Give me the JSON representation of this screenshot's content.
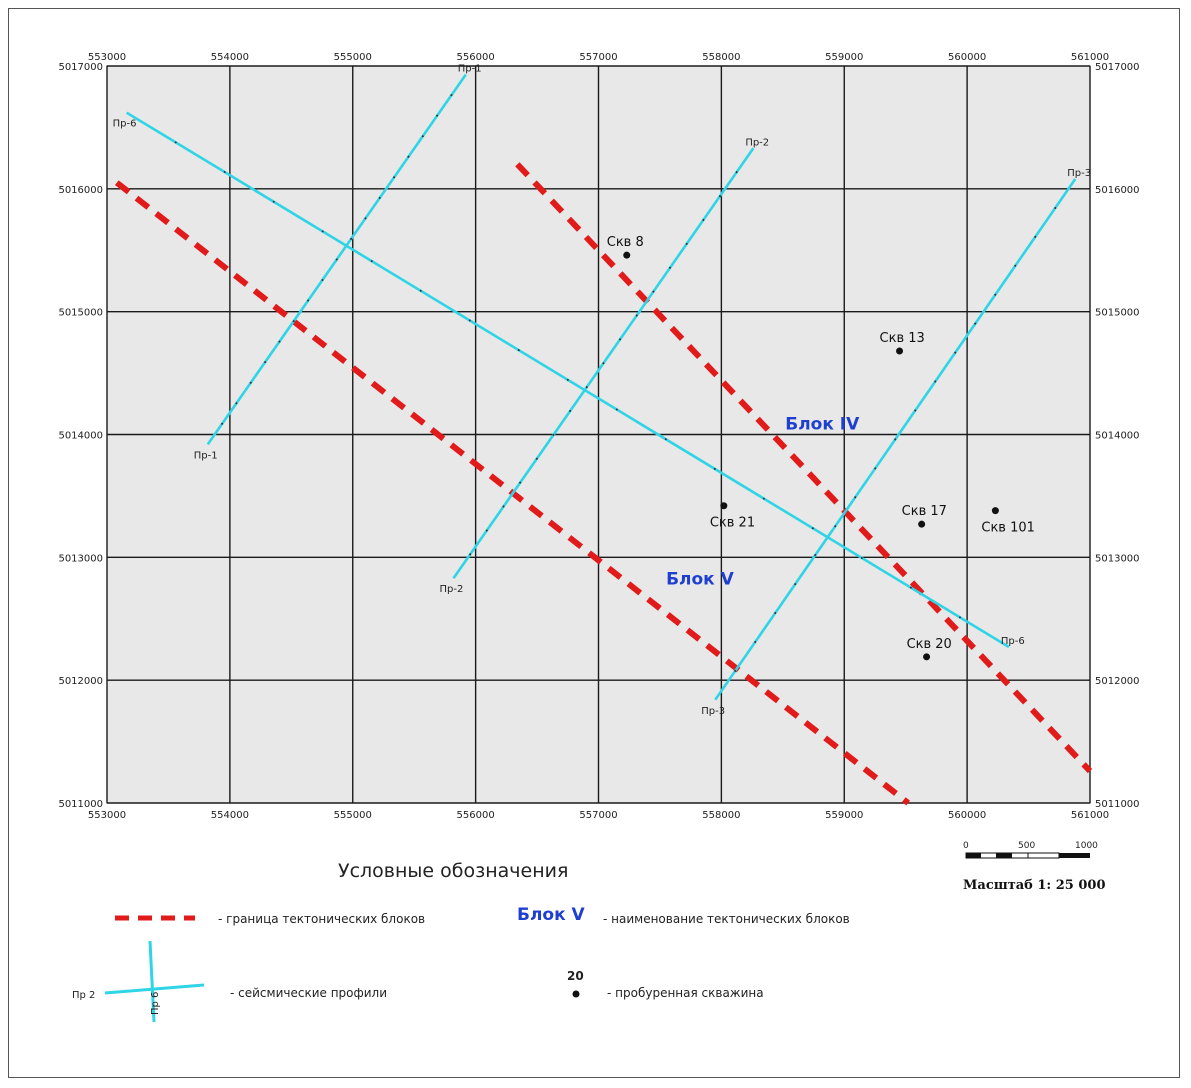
{
  "map": {
    "x_range": [
      553000,
      561000
    ],
    "y_range": [
      5011000,
      5017000
    ],
    "x_ticks": [
      "553000",
      "554000",
      "555000",
      "556000",
      "557000",
      "558000",
      "559000",
      "560000",
      "561000"
    ],
    "y_ticks": [
      "5011000",
      "5012000",
      "5013000",
      "5014000",
      "5015000",
      "5016000",
      "5017000"
    ],
    "colors": {
      "background": "#e8e8e8",
      "grid": "#1a1a1a",
      "profile": "#2fd4e6",
      "boundary": "#e11a1a",
      "block": "#1f3fd0"
    },
    "profiles": [
      {
        "name": "Пр-1",
        "start": [
          553820,
          5013920
        ],
        "end": [
          555920,
          5016930
        ],
        "start_label": "Пр-1",
        "end_label": "Пр-1"
      },
      {
        "name": "Пр-2",
        "start": [
          555820,
          5012830
        ],
        "end": [
          558260,
          5016330
        ],
        "start_label": "Пр-2",
        "end_label": "Пр-2"
      },
      {
        "name": "Пр-3",
        "start": [
          557950,
          5011840
        ],
        "end": [
          560880,
          5016080
        ],
        "start_label": "Пр-3",
        "end_label": "Пр-3"
      },
      {
        "name": "Пр-6",
        "start": [
          553160,
          5016620
        ],
        "end": [
          560340,
          5012270
        ],
        "start_label": "Пр-6",
        "end_label": "Пр-6"
      }
    ],
    "boundaries": [
      {
        "name": "boundary-southwest",
        "start": [
          553080,
          5016050
        ],
        "end": [
          559520,
          5011000
        ]
      },
      {
        "name": "boundary-northeast",
        "start": [
          556340,
          5016200
        ],
        "end": [
          561000,
          5011260
        ]
      }
    ],
    "wells": [
      {
        "label": "Скв 8",
        "x": 557230,
        "y": 5015460
      },
      {
        "label": "Скв 13",
        "x": 559450,
        "y": 5014680
      },
      {
        "label": "Скв 21",
        "x": 558020,
        "y": 5013420
      },
      {
        "label": "Скв 17",
        "x": 559630,
        "y": 5013270
      },
      {
        "label": "Скв 101",
        "x": 560230,
        "y": 5013380
      },
      {
        "label": "Скв 20",
        "x": 559670,
        "y": 5012190
      }
    ],
    "blocks": [
      {
        "label": "Блок IV",
        "x": 558520,
        "y": 5014040
      },
      {
        "label": "Блок V",
        "x": 557550,
        "y": 5012780
      }
    ]
  },
  "scale": {
    "title": "Масштаб 1: 25 000",
    "ticks": [
      "0",
      "500",
      "1000"
    ]
  },
  "legend": {
    "title": "Условные обозначения",
    "boundary_text": "- граница тектонических блоков",
    "block_sample": "Блок V",
    "block_text": "- наименование тектонических блоков",
    "profile_text": "- сейсмические профили",
    "profile_h_label": "Пр 2",
    "profile_v_label": "Пр 6",
    "well_sample": "20",
    "well_text": "- пробуренная скважина"
  }
}
